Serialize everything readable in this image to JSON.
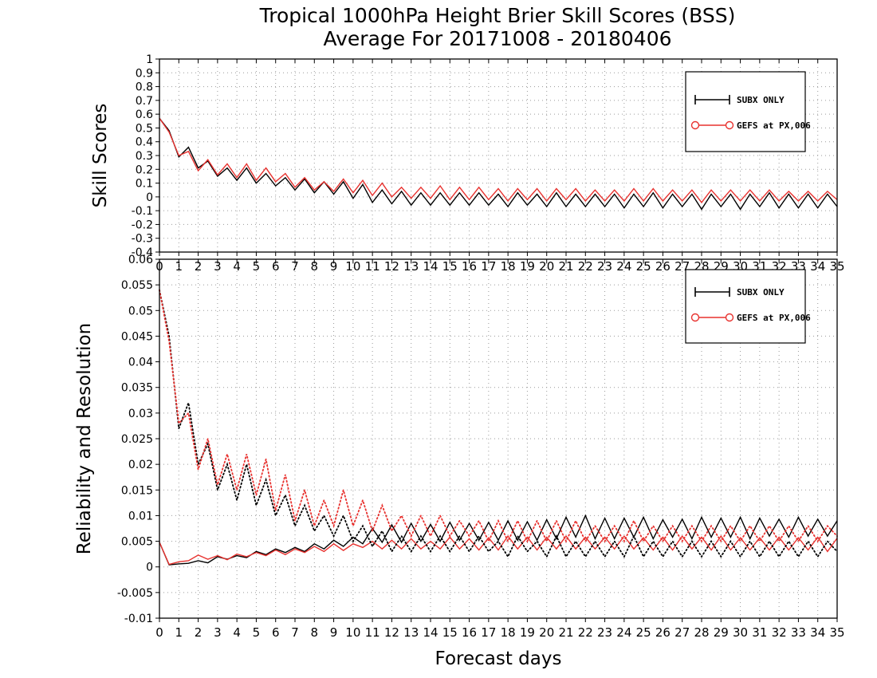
{
  "title_line1": "Tropical 1000hPa Height Brier Skill Scores (BSS)",
  "title_line2": "Average For 20171008 - 20180406",
  "chart_data": [
    {
      "type": "line",
      "ylabel": "Skill Scores",
      "xlabel": "",
      "xlim": [
        0,
        35
      ],
      "ylim": [
        -0.4,
        1
      ],
      "yticks": [
        "1",
        "0.9",
        "0.8",
        "0.7",
        "0.6",
        "0.5",
        "0.4",
        "0.3",
        "0.2",
        "0.1",
        "0",
        "-0.1",
        "-0.2",
        "-0.3",
        "-0.4"
      ],
      "xticks": [
        "0",
        "1",
        "2",
        "3",
        "4",
        "5",
        "6",
        "7",
        "8",
        "9",
        "10",
        "11",
        "12",
        "13",
        "14",
        "15",
        "16",
        "17",
        "18",
        "19",
        "20",
        "21",
        "22",
        "23",
        "24",
        "25",
        "26",
        "27",
        "28",
        "29",
        "30",
        "31",
        "32",
        "33",
        "34",
        "35"
      ],
      "legend": {
        "placement": "top-right",
        "entries": [
          "SUBX ONLY",
          "GEFS at PX,006"
        ]
      },
      "series": [
        {
          "name": "SUBX ONLY",
          "color": "#000000",
          "x": [
            0,
            0.5,
            1,
            1.5,
            2,
            2.5,
            3,
            3.5,
            4,
            4.5,
            5,
            5.5,
            6,
            6.5,
            7,
            7.5,
            8,
            8.5,
            9,
            9.5,
            10,
            10.5,
            11,
            11.5,
            12,
            12.5,
            13,
            13.5,
            14,
            14.5,
            15,
            15.5,
            16,
            16.5,
            17,
            17.5,
            18,
            18.5,
            19,
            19.5,
            20,
            20.5,
            21,
            21.5,
            22,
            22.5,
            23,
            23.5,
            24,
            24.5,
            25,
            25.5,
            26,
            26.5,
            27,
            27.5,
            28,
            28.5,
            29,
            29.5,
            30,
            30.5,
            31,
            31.5,
            32,
            32.5,
            33,
            33.5,
            34,
            34.5,
            35
          ],
          "values": [
            0.57,
            0.48,
            0.29,
            0.36,
            0.21,
            0.26,
            0.15,
            0.21,
            0.12,
            0.21,
            0.1,
            0.17,
            0.08,
            0.14,
            0.05,
            0.13,
            0.03,
            0.11,
            0.02,
            0.11,
            -0.01,
            0.09,
            -0.04,
            0.05,
            -0.05,
            0.04,
            -0.06,
            0.03,
            -0.06,
            0.03,
            -0.06,
            0.03,
            -0.06,
            0.03,
            -0.06,
            0.02,
            -0.07,
            0.03,
            -0.06,
            0.02,
            -0.07,
            0.03,
            -0.07,
            0.02,
            -0.07,
            0.02,
            -0.07,
            0.02,
            -0.08,
            0.02,
            -0.07,
            0.03,
            -0.08,
            0.02,
            -0.07,
            0.02,
            -0.09,
            0.02,
            -0.07,
            0.02,
            -0.09,
            0.02,
            -0.07,
            0.03,
            -0.08,
            0.02,
            -0.08,
            0.02,
            -0.08,
            0.02,
            -0.07
          ]
        },
        {
          "name": "GEFS at PX,006",
          "color": "#e8322f",
          "x": [
            0,
            0.5,
            1,
            1.5,
            2,
            2.5,
            3,
            3.5,
            4,
            4.5,
            5,
            5.5,
            6,
            6.5,
            7,
            7.5,
            8,
            8.5,
            9,
            9.5,
            10,
            10.5,
            11,
            11.5,
            12,
            12.5,
            13,
            13.5,
            14,
            14.5,
            15,
            15.5,
            16,
            16.5,
            17,
            17.5,
            18,
            18.5,
            19,
            19.5,
            20,
            20.5,
            21,
            21.5,
            22,
            22.5,
            23,
            23.5,
            24,
            24.5,
            25,
            25.5,
            26,
            26.5,
            27,
            27.5,
            28,
            28.5,
            29,
            29.5,
            30,
            30.5,
            31,
            31.5,
            32,
            32.5,
            33,
            33.5,
            34,
            34.5,
            35
          ],
          "values": [
            0.57,
            0.47,
            0.3,
            0.33,
            0.19,
            0.27,
            0.16,
            0.24,
            0.14,
            0.24,
            0.12,
            0.21,
            0.11,
            0.17,
            0.07,
            0.14,
            0.05,
            0.11,
            0.04,
            0.13,
            0.03,
            0.12,
            0.01,
            0.1,
            0.0,
            0.07,
            -0.01,
            0.07,
            -0.01,
            0.08,
            -0.02,
            0.07,
            -0.02,
            0.07,
            -0.02,
            0.06,
            -0.03,
            0.06,
            -0.02,
            0.06,
            -0.03,
            0.06,
            -0.02,
            0.06,
            -0.03,
            0.05,
            -0.03,
            0.05,
            -0.03,
            0.06,
            -0.03,
            0.06,
            -0.03,
            0.05,
            -0.03,
            0.05,
            -0.04,
            0.05,
            -0.03,
            0.05,
            -0.03,
            0.05,
            -0.03,
            0.05,
            -0.03,
            0.04,
            -0.03,
            0.04,
            -0.03,
            0.04,
            -0.02
          ]
        }
      ]
    },
    {
      "type": "line",
      "ylabel": "Reliability and Resolution",
      "xlabel": "Forecast days",
      "xlim": [
        0,
        35
      ],
      "ylim": [
        -0.01,
        0.06
      ],
      "yticks": [
        "0.06",
        "0.055",
        "0.05",
        "0.045",
        "0.04",
        "0.035",
        "0.03",
        "0.025",
        "0.02",
        "0.015",
        "0.01",
        "0.005",
        "0",
        "-0.005",
        "-0.01"
      ],
      "xticks": [
        "0",
        "1",
        "2",
        "3",
        "4",
        "5",
        "6",
        "7",
        "8",
        "9",
        "10",
        "11",
        "12",
        "13",
        "14",
        "15",
        "16",
        "17",
        "18",
        "19",
        "20",
        "21",
        "22",
        "23",
        "24",
        "25",
        "26",
        "27",
        "28",
        "29",
        "30",
        "31",
        "32",
        "33",
        "34",
        "35"
      ],
      "legend": {
        "placement": "top-right",
        "entries": [
          "SUBX ONLY",
          "GEFS at PX,006"
        ]
      },
      "series": [
        {
          "name": "SUBX ONLY reliability",
          "color": "#000000",
          "dash": "solid",
          "x": [
            0,
            0.5,
            1,
            1.5,
            2,
            2.5,
            3,
            3.5,
            4,
            4.5,
            5,
            5.5,
            6,
            6.5,
            7,
            7.5,
            8,
            8.5,
            9,
            9.5,
            10,
            10.5,
            11,
            11.5,
            12,
            12.5,
            13,
            13.5,
            14,
            14.5,
            15,
            15.5,
            16,
            16.5,
            17,
            17.5,
            18,
            18.5,
            19,
            19.5,
            20,
            20.5,
            21,
            21.5,
            22,
            22.5,
            23,
            23.5,
            24,
            24.5,
            25,
            25.5,
            26,
            26.5,
            27,
            27.5,
            28,
            28.5,
            29,
            29.5,
            30,
            30.5,
            31,
            31.5,
            32,
            32.5,
            33,
            33.5,
            34,
            34.5,
            35
          ],
          "values": [
            0.0048,
            0.0004,
            0.0006,
            0.0007,
            0.0012,
            0.0008,
            0.002,
            0.0015,
            0.0022,
            0.0018,
            0.003,
            0.0024,
            0.0035,
            0.0028,
            0.0038,
            0.003,
            0.0045,
            0.0035,
            0.0052,
            0.004,
            0.0058,
            0.0045,
            0.0075,
            0.0048,
            0.0082,
            0.0048,
            0.0085,
            0.005,
            0.0083,
            0.005,
            0.0087,
            0.0052,
            0.0085,
            0.0052,
            0.0087,
            0.0052,
            0.009,
            0.0052,
            0.0088,
            0.0052,
            0.0092,
            0.0055,
            0.0097,
            0.0058,
            0.01,
            0.0055,
            0.0095,
            0.0055,
            0.0095,
            0.0058,
            0.0097,
            0.0055,
            0.0092,
            0.0058,
            0.0093,
            0.0055,
            0.0097,
            0.0058,
            0.0095,
            0.0058,
            0.0097,
            0.0055,
            0.0095,
            0.006,
            0.0093,
            0.0058,
            0.0097,
            0.006,
            0.0093,
            0.006,
            0.009
          ]
        },
        {
          "name": "GEFS at PX,006 reliability",
          "color": "#e8322f",
          "dash": "solid",
          "x": [
            0,
            0.5,
            1,
            1.5,
            2,
            2.5,
            3,
            3.5,
            4,
            4.5,
            5,
            5.5,
            6,
            6.5,
            7,
            7.5,
            8,
            8.5,
            9,
            9.5,
            10,
            10.5,
            11,
            11.5,
            12,
            12.5,
            13,
            13.5,
            14,
            14.5,
            15,
            15.5,
            16,
            16.5,
            17,
            17.5,
            18,
            18.5,
            19,
            19.5,
            20,
            20.5,
            21,
            21.5,
            22,
            22.5,
            23,
            23.5,
            24,
            24.5,
            25,
            25.5,
            26,
            26.5,
            27,
            27.5,
            28,
            28.5,
            29,
            29.5,
            30,
            30.5,
            31,
            31.5,
            32,
            32.5,
            33,
            33.5,
            34,
            34.5,
            35
          ],
          "values": [
            0.0048,
            0.0005,
            0.001,
            0.0012,
            0.0023,
            0.0015,
            0.0022,
            0.0014,
            0.0025,
            0.002,
            0.0028,
            0.0022,
            0.0033,
            0.0024,
            0.0035,
            0.0028,
            0.004,
            0.003,
            0.0045,
            0.0032,
            0.0045,
            0.0038,
            0.005,
            0.0035,
            0.0052,
            0.0035,
            0.0055,
            0.0035,
            0.005,
            0.0035,
            0.0058,
            0.0035,
            0.0055,
            0.0033,
            0.0057,
            0.0033,
            0.006,
            0.0035,
            0.0058,
            0.0033,
            0.0058,
            0.0035,
            0.006,
            0.0035,
            0.0058,
            0.0035,
            0.0058,
            0.0035,
            0.006,
            0.0035,
            0.0057,
            0.0033,
            0.0058,
            0.0033,
            0.006,
            0.0035,
            0.0058,
            0.0033,
            0.006,
            0.0033,
            0.0057,
            0.0033,
            0.0057,
            0.0033,
            0.0058,
            0.0033,
            0.0057,
            0.0033,
            0.0058,
            0.003,
            0.0056
          ]
        },
        {
          "name": "SUBX ONLY resolution",
          "color": "#000000",
          "dash": "dotted",
          "x": [
            0,
            0.5,
            1,
            1.5,
            2,
            2.5,
            3,
            3.5,
            4,
            4.5,
            5,
            5.5,
            6,
            6.5,
            7,
            7.5,
            8,
            8.5,
            9,
            9.5,
            10,
            10.5,
            11,
            11.5,
            12,
            12.5,
            13,
            13.5,
            14,
            14.5,
            15,
            15.5,
            16,
            16.5,
            17,
            17.5,
            18,
            18.5,
            19,
            19.5,
            20,
            20.5,
            21,
            21.5,
            22,
            22.5,
            23,
            23.5,
            24,
            24.5,
            25,
            25.5,
            26,
            26.5,
            27,
            27.5,
            28,
            28.5,
            29,
            29.5,
            30,
            30.5,
            31,
            31.5,
            32,
            32.5,
            33,
            33.5,
            34,
            34.5,
            35
          ],
          "values": [
            0.054,
            0.045,
            0.027,
            0.032,
            0.02,
            0.024,
            0.015,
            0.02,
            0.013,
            0.02,
            0.012,
            0.017,
            0.01,
            0.014,
            0.008,
            0.012,
            0.007,
            0.01,
            0.006,
            0.01,
            0.005,
            0.008,
            0.004,
            0.007,
            0.003,
            0.006,
            0.003,
            0.006,
            0.003,
            0.006,
            0.003,
            0.006,
            0.003,
            0.006,
            0.003,
            0.005,
            0.002,
            0.006,
            0.003,
            0.005,
            0.002,
            0.006,
            0.002,
            0.005,
            0.002,
            0.005,
            0.002,
            0.005,
            0.002,
            0.006,
            0.002,
            0.005,
            0.002,
            0.005,
            0.002,
            0.005,
            0.002,
            0.005,
            0.002,
            0.005,
            0.002,
            0.005,
            0.002,
            0.005,
            0.002,
            0.005,
            0.002,
            0.005,
            0.002,
            0.005,
            0.003
          ]
        },
        {
          "name": "GEFS at PX,006 resolution",
          "color": "#e8322f",
          "dash": "dotted",
          "x": [
            0,
            0.5,
            1,
            1.5,
            2,
            2.5,
            3,
            3.5,
            4,
            4.5,
            5,
            5.5,
            6,
            6.5,
            7,
            7.5,
            8,
            8.5,
            9,
            9.5,
            10,
            10.5,
            11,
            11.5,
            12,
            12.5,
            13,
            13.5,
            14,
            14.5,
            15,
            15.5,
            16,
            16.5,
            17,
            17.5,
            18,
            18.5,
            19,
            19.5,
            20,
            20.5,
            21,
            21.5,
            22,
            22.5,
            23,
            23.5,
            24,
            24.5,
            25,
            25.5,
            26,
            26.5,
            27,
            27.5,
            28,
            28.5,
            29,
            29.5,
            30,
            30.5,
            31,
            31.5,
            32,
            32.5,
            33,
            33.5,
            34,
            34.5,
            35
          ],
          "values": [
            0.054,
            0.044,
            0.028,
            0.03,
            0.019,
            0.025,
            0.016,
            0.022,
            0.015,
            0.022,
            0.014,
            0.021,
            0.011,
            0.018,
            0.009,
            0.015,
            0.008,
            0.013,
            0.008,
            0.015,
            0.008,
            0.013,
            0.007,
            0.012,
            0.007,
            0.01,
            0.006,
            0.01,
            0.006,
            0.01,
            0.006,
            0.009,
            0.006,
            0.009,
            0.005,
            0.009,
            0.005,
            0.009,
            0.005,
            0.009,
            0.005,
            0.009,
            0.005,
            0.009,
            0.005,
            0.008,
            0.005,
            0.008,
            0.005,
            0.009,
            0.005,
            0.008,
            0.005,
            0.008,
            0.005,
            0.008,
            0.005,
            0.008,
            0.005,
            0.008,
            0.005,
            0.008,
            0.005,
            0.008,
            0.005,
            0.008,
            0.005,
            0.008,
            0.005,
            0.008,
            0.006
          ]
        }
      ]
    }
  ]
}
